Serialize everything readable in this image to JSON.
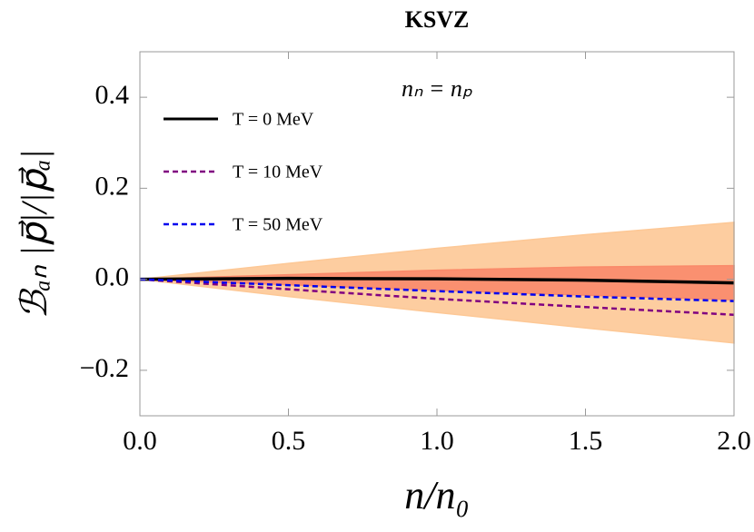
{
  "chart_data": {
    "type": "line",
    "title": "KSVZ",
    "annotation": "nₙ = nₚ",
    "x_label": "n/n₀",
    "y_label": "ℬₐₙ |p⃗|/|p⃗ₐ|",
    "x": [
      0,
      0.5,
      1.0,
      1.5,
      2.0
    ],
    "xlim": [
      0,
      2
    ],
    "ylim": [
      -0.3,
      0.5
    ],
    "xticks": [
      {
        "value": 0,
        "label": "0.0"
      },
      {
        "value": 0.5,
        "label": "0.5"
      },
      {
        "value": 1,
        "label": "1.0"
      },
      {
        "value": 1.5,
        "label": "1.5"
      },
      {
        "value": 2,
        "label": "2.0"
      }
    ],
    "yticks": [
      {
        "value": -0.2,
        "label": "−0.2"
      },
      {
        "value": 0,
        "label": "0.0"
      },
      {
        "value": 0.2,
        "label": "0.2"
      },
      {
        "value": 0.4,
        "label": "0.4"
      }
    ],
    "bands": [
      {
        "color": "#fdc896",
        "upper": [
          0,
          0.035,
          0.068,
          0.098,
          0.125
        ],
        "lower": [
          0,
          -0.038,
          -0.073,
          -0.107,
          -0.14
        ]
      },
      {
        "color": "#fa8a6a",
        "upper": [
          0,
          0.01,
          0.02,
          0.027,
          0.03
        ],
        "lower": [
          0,
          -0.012,
          -0.024,
          -0.035,
          -0.045
        ]
      }
    ],
    "series": [
      {
        "name": "T = 0 MeV",
        "color": "#000000",
        "dash": "solid",
        "values": [
          0,
          0.002,
          0.001,
          -0.002,
          -0.008
        ]
      },
      {
        "name": "T = 10 MeV",
        "color": "#800080",
        "dash": "dashed",
        "values": [
          0,
          -0.022,
          -0.043,
          -0.061,
          -0.078
        ]
      },
      {
        "name": "T = 50 MeV",
        "color": "#0000ee",
        "dash": "dashed",
        "values": [
          0,
          -0.013,
          -0.026,
          -0.038,
          -0.048
        ]
      }
    ],
    "legend": "upper left"
  }
}
